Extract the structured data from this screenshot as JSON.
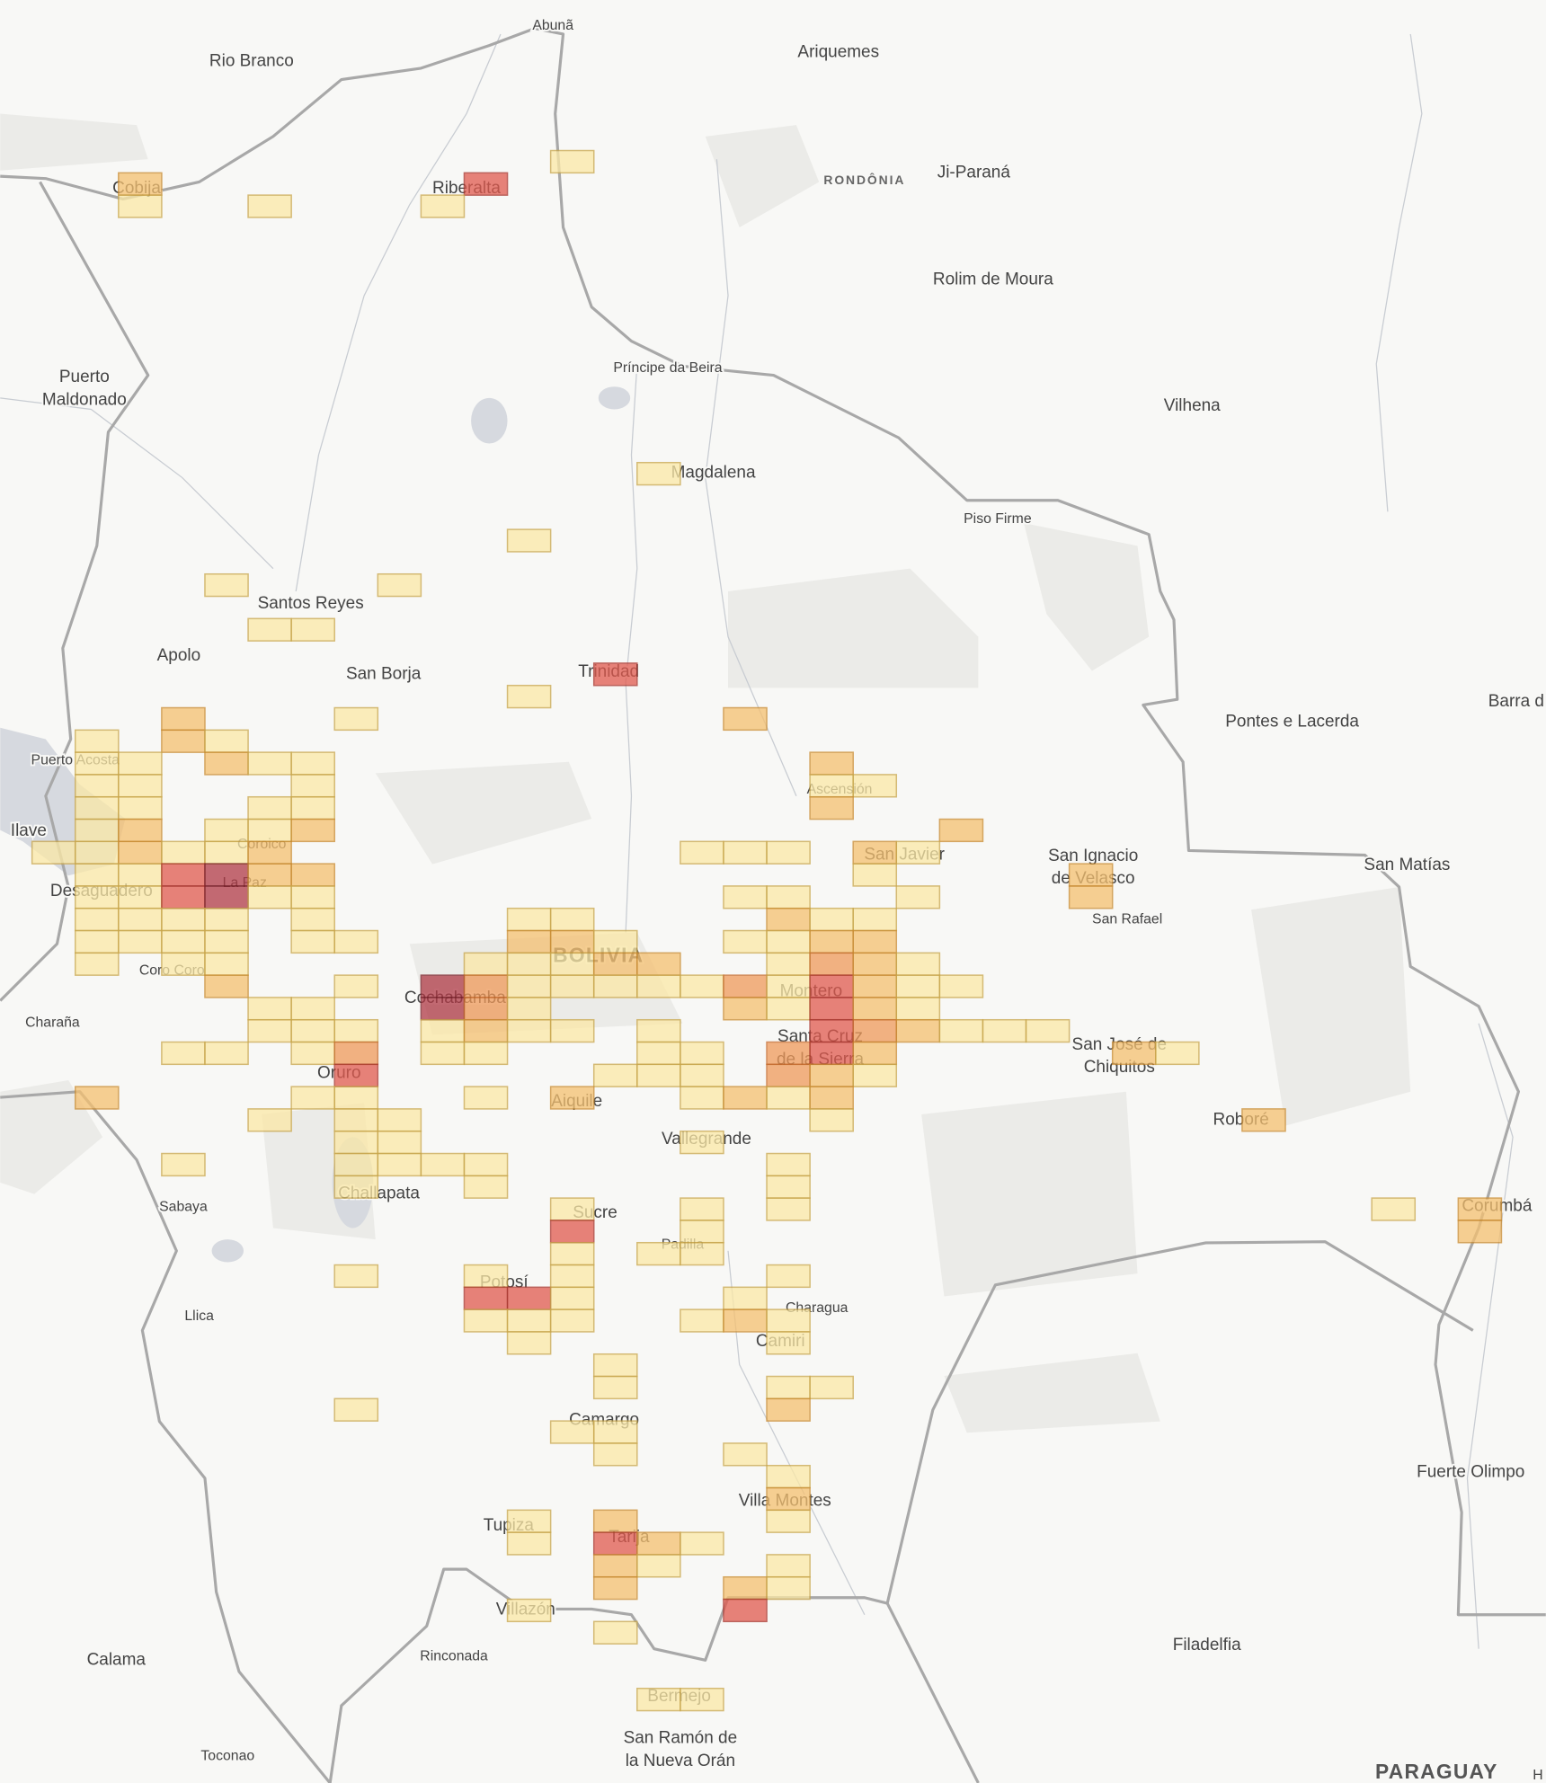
{
  "places": [
    [
      "Abunã"
    ],
    [
      "Rio Branco"
    ],
    [
      "Ariquemes"
    ],
    [
      "RONDÔNIA"
    ],
    [
      "Ji-Paraná"
    ],
    [
      "Cobija"
    ],
    [
      "Riberalta"
    ],
    [
      "Rolim de Moura"
    ],
    [
      "Príncipe da Beira"
    ],
    [
      "Puerto",
      "Maldonado"
    ],
    [
      "Vilhena"
    ],
    [
      "Magdalena"
    ],
    [
      "Piso Firme"
    ],
    [
      "Santos Reyes"
    ],
    [
      "Apolo"
    ],
    [
      "San Borja"
    ],
    [
      "Trinidad"
    ],
    [
      "Pontes e Lacerda"
    ],
    [
      "Barra d"
    ],
    [
      "Puerto Acosta"
    ],
    [
      "Ascensión"
    ],
    [
      "Ilave"
    ],
    [
      "Coroico"
    ],
    [
      "San Javier"
    ],
    [
      "San Ignacio",
      "de Velasco"
    ],
    [
      "San Matías"
    ],
    [
      "Desaguadero"
    ],
    [
      "La Paz"
    ],
    [
      "San Rafael"
    ],
    [
      "BOLIVIA"
    ],
    [
      "Coro Coro"
    ],
    [
      "Cochabamba"
    ],
    [
      "Montero"
    ],
    [
      "Charaña"
    ],
    [
      "Santa Cruz",
      "de la Sierra"
    ],
    [
      "San José de",
      "Chiquitos"
    ],
    [
      "Oruro"
    ],
    [
      "Aiquile"
    ],
    [
      "Roboré"
    ],
    [
      "Vallegrande"
    ],
    [
      "Challapata"
    ],
    [
      "Sabaya"
    ],
    [
      "Sucre"
    ],
    [
      "Corumbá"
    ],
    [
      "Padilla"
    ],
    [
      "Potosí"
    ],
    [
      "Charagua"
    ],
    [
      "Llica"
    ],
    [
      "Camiri"
    ],
    [
      "Camargo"
    ],
    [
      "Fuerte Olimpo"
    ],
    [
      "Villa Montes"
    ],
    [
      "Tupiza"
    ],
    [
      "Tarija"
    ],
    [
      "Villazón"
    ],
    [
      "Calama"
    ],
    [
      "Rinconada"
    ],
    [
      "Filadelfia"
    ],
    [
      "Bermejo"
    ],
    [
      "San Ramón de",
      "la Nueva Orán"
    ],
    [
      "Toconao"
    ],
    [
      "PARAGUAY"
    ],
    [
      "H"
    ]
  ]
}
